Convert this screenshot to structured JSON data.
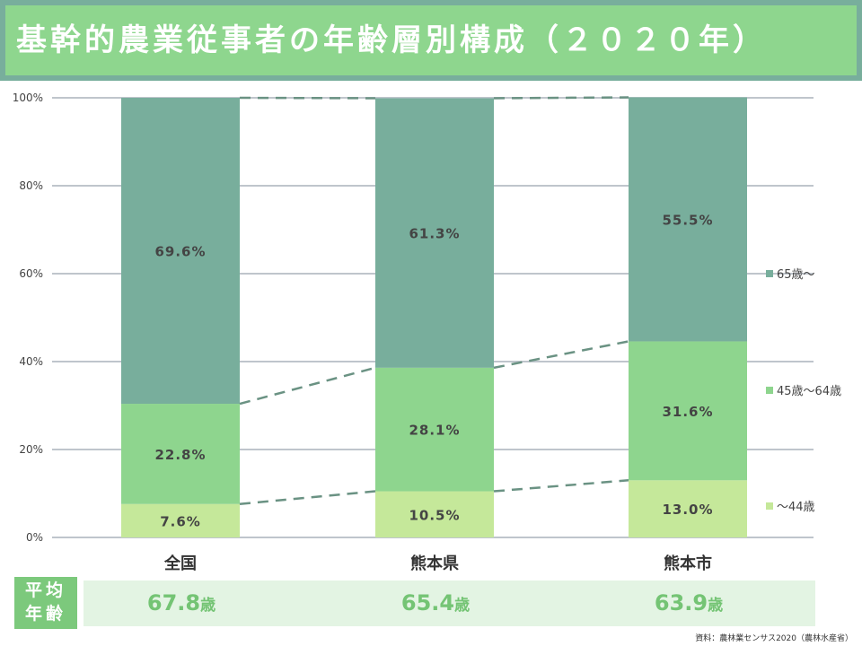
{
  "title": "基幹的農業従事者の年齢層別構成（２０２０年）",
  "chart_data": {
    "type": "bar",
    "stacked": true,
    "categories": [
      "全国",
      "熊本県",
      "熊本市"
    ],
    "series": [
      {
        "name": "〜44歳",
        "values": [
          7.6,
          10.5,
          13.0
        ],
        "color": "#c5e89a"
      },
      {
        "name": "45歳〜64歳",
        "values": [
          22.8,
          28.1,
          31.6
        ],
        "color": "#8ed58e"
      },
      {
        "name": "65歳〜",
        "values": [
          69.6,
          61.3,
          55.5
        ],
        "color": "#78ae9c"
      }
    ],
    "ylim": [
      0,
      100
    ],
    "yticks": [
      "0%",
      "20%",
      "40%",
      "60%",
      "80%",
      "100%"
    ],
    "grid": true,
    "legend": "right",
    "connector_lines": "dashed"
  },
  "average_age": {
    "label_line1": "平均",
    "label_line2": "年齢",
    "unit": "歳",
    "values": [
      "67.8",
      "65.4",
      "63.9"
    ]
  },
  "source": "資料：農林業センサス2020（農林水産省）"
}
